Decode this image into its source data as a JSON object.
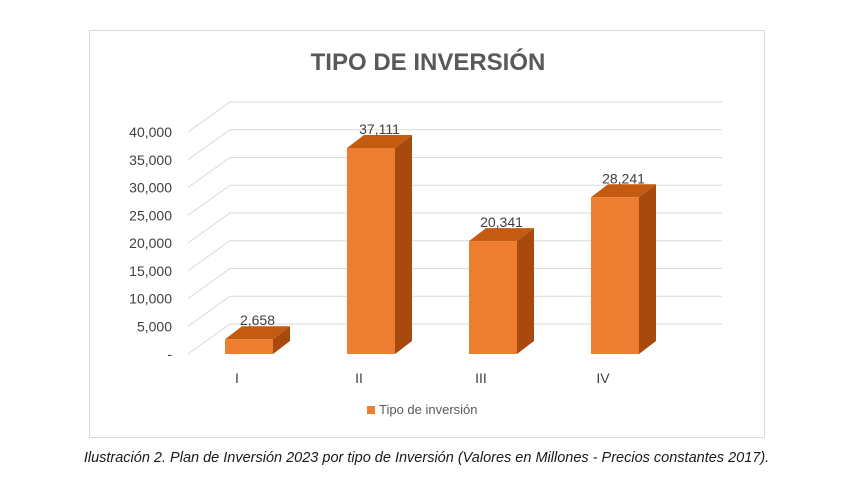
{
  "chart_data": {
    "type": "bar",
    "title": "TIPO DE INVERSIÓN",
    "categories": [
      "I",
      "II",
      "III",
      "IV"
    ],
    "series": [
      {
        "name": "Tipo de inversión",
        "values": [
          2658,
          37111,
          20341,
          28241
        ],
        "color": "#ED7D31"
      }
    ],
    "data_labels": [
      "2,658",
      "37,111",
      "20,341",
      "28,241"
    ],
    "y_ticks": [
      0,
      5000,
      10000,
      15000,
      20000,
      25000,
      30000,
      35000,
      40000
    ],
    "y_tick_labels": [
      "-",
      "5,000",
      "10,000",
      "15,000",
      "20,000",
      "25,000",
      "30,000",
      "35,000",
      "40,000"
    ],
    "ylim": [
      0,
      40000
    ],
    "grid": true,
    "legend": "bottom",
    "style": "3d-column"
  },
  "caption": "Ilustración 2. Plan de Inversión 2023 por tipo de Inversión (Valores en Millones - Precios constantes 2017).",
  "colors": {
    "bar_front": "#ED7D31",
    "bar_top": "#C55A11",
    "bar_side": "#A84A0E",
    "grid": "#d9d9d9",
    "text": "#404040"
  }
}
